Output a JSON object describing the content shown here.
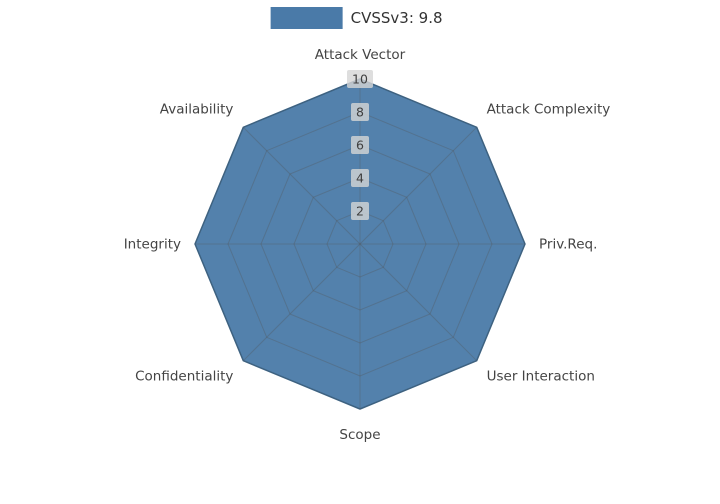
{
  "chart_data": {
    "type": "radar",
    "title": "",
    "legend": "CVSSv3: 9.8",
    "categories": [
      "Attack Vector",
      "Attack Complexity",
      "Priv.Req.",
      "User Interaction",
      "Scope",
      "Confidentiality",
      "Integrity",
      "Availability"
    ],
    "series": [
      {
        "name": "CVSSv3: 9.8",
        "values": [
          10,
          10,
          10,
          10,
          10,
          10,
          10,
          10
        ]
      }
    ],
    "radial_ticks": [
      2,
      4,
      6,
      8,
      10
    ],
    "rlim": [
      0,
      10
    ],
    "grid": "on",
    "legend_position": "top-center",
    "colors": {
      "fill": "#4a7aa8",
      "stroke": "#38678f",
      "grid": "#555555",
      "tick_box": "#d6d6d6",
      "tick_text": "#3f3f3f",
      "category_text": "#444444"
    }
  }
}
